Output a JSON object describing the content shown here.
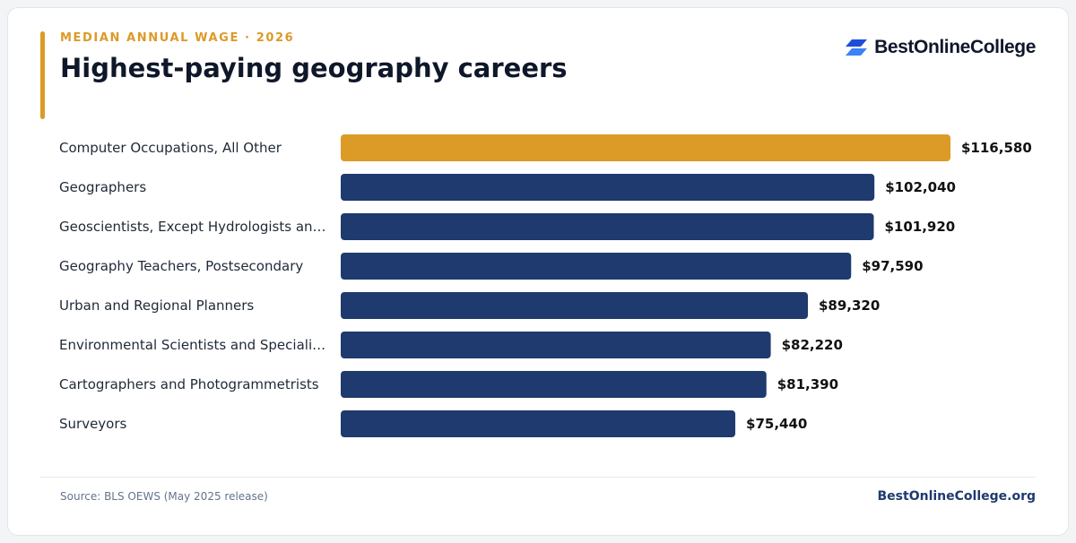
{
  "header": {
    "eyebrow": "MEDIAN ANNUAL WAGE · 2026",
    "title": "Highest-paying geography careers"
  },
  "brand": {
    "name": "BestOnlineCollege",
    "icon": "parallelogram-logo-icon"
  },
  "colors": {
    "accent": "#dc9a27",
    "bar": "#1e3a6e",
    "highlight": "#dc9a27",
    "brand_dark": "#1d4ed8",
    "brand_light": "#3b82f6"
  },
  "chart_data": {
    "type": "bar",
    "orientation": "horizontal",
    "categories": [
      "Computer Occupations, All Other",
      "Geographers",
      "Geoscientists, Except Hydrologists an…",
      "Geography Teachers, Postsecondary",
      "Urban and Regional Planners",
      "Environmental Scientists and Speciali…",
      "Cartographers and Photogrammetrists",
      "Surveyors"
    ],
    "values": [
      116580,
      102040,
      101920,
      97590,
      89320,
      82220,
      81390,
      75440
    ],
    "value_labels": [
      "$116,580",
      "$102,040",
      "$101,920",
      "$97,590",
      "$89,320",
      "$82,220",
      "$81,390",
      "$75,440"
    ],
    "highlight_index": 0,
    "xlim": [
      0,
      116580
    ],
    "grid": false,
    "legend": "none"
  },
  "footer": {
    "source": "Source: BLS OEWS (May 2025 release)",
    "site": "BestOnlineCollege.org"
  }
}
